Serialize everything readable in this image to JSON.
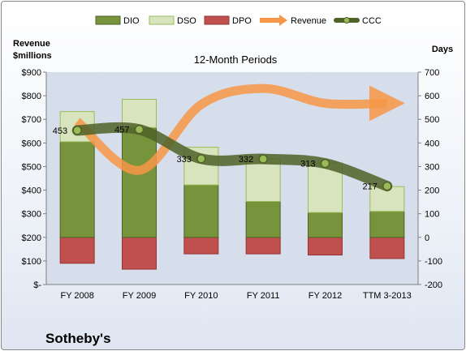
{
  "company": "Sotheby's",
  "chart_data": {
    "type": "bar",
    "subtitle": "12-Month Periods",
    "left_axis": {
      "label_lines": [
        "Revenue",
        "$millions"
      ],
      "min": 0,
      "max": 900,
      "step": 100,
      "ticks": [
        "$-",
        "$100",
        "$200",
        "$300",
        "$400",
        "$500",
        "$600",
        "$700",
        "$800",
        "$900"
      ]
    },
    "right_axis": {
      "label": "Days",
      "min": -200,
      "max": 700,
      "step": 100,
      "ticks": [
        "-200",
        "-100",
        "0",
        "100",
        "200",
        "300",
        "400",
        "500",
        "600",
        "700"
      ]
    },
    "categories": [
      "FY 2008",
      "FY 2009",
      "FY 2010",
      "FY 2011",
      "FY 2012",
      "TTM 3-2013"
    ],
    "series": [
      {
        "name": "DIO",
        "axis": "right",
        "color": "#77933c",
        "values": [
          405,
          465,
          222,
          152,
          105,
          110
        ]
      },
      {
        "name": "DSO",
        "axis": "right",
        "color": "#d7e4bd",
        "values": [
          128,
          120,
          160,
          180,
          210,
          105
        ]
      },
      {
        "name": "DPO",
        "axis": "right",
        "color": "#c0504d",
        "values": [
          -110,
          -135,
          -70,
          -70,
          -75,
          -90
        ]
      },
      {
        "name": "Revenue",
        "axis": "left",
        "color": "#f79646",
        "values": [
          691,
          484,
          763,
          831,
          768,
          768
        ]
      },
      {
        "name": "CCC",
        "axis": "right",
        "color": "#4f6228",
        "values": [
          453,
          457,
          333,
          332,
          313,
          217
        ],
        "labels": [
          "453",
          "457",
          "333",
          "332",
          "313",
          "217"
        ]
      }
    ],
    "legend_position": "top",
    "grid": false
  }
}
